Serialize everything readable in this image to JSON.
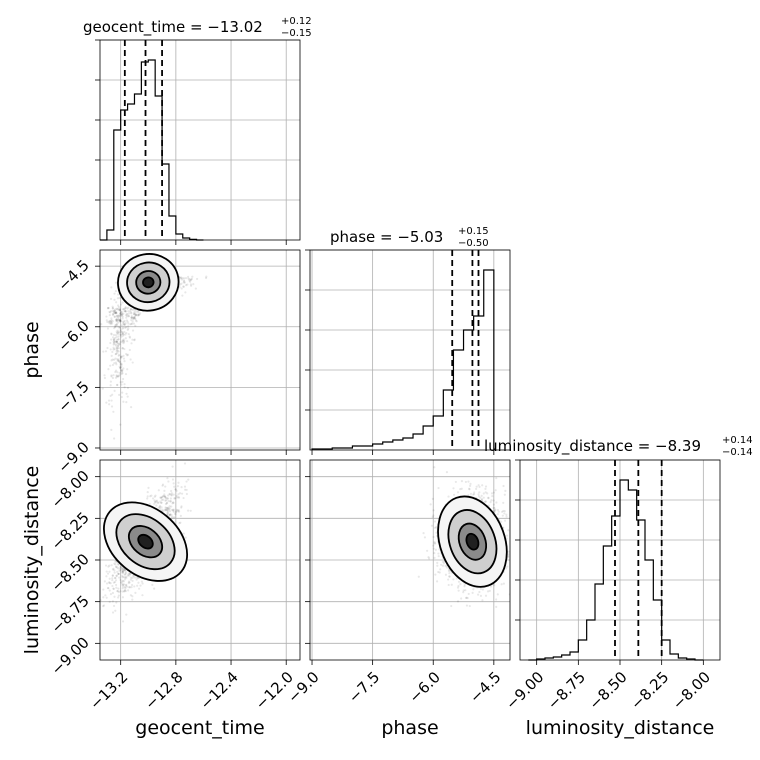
{
  "chart_data": {
    "type": "corner",
    "parameters": [
      "geocent_time",
      "phase",
      "luminosity_distance"
    ],
    "axis_labels": {
      "x": [
        "geocent_time",
        "phase",
        "luminosity_distance"
      ],
      "y": [
        "phase",
        "luminosity_distance"
      ]
    },
    "ranges": {
      "geocent_time": [
        -13.35,
        -11.9
      ],
      "phase": [
        -9.05,
        -4.1
      ],
      "luminosity_distance": [
        -9.1,
        -7.9
      ]
    },
    "ticks": {
      "geocent_time": {
        "values": [
          -13.2,
          -12.8,
          -12.4,
          -12.0
        ],
        "labels": [
          "−13.2",
          "−12.8",
          "−12.4",
          "−12.0"
        ]
      },
      "phase": {
        "values": [
          -9.0,
          -7.5,
          -6.0,
          -4.5
        ],
        "labels": [
          "−9.0",
          "−7.5",
          "−6.0",
          "−4.5"
        ]
      },
      "luminosity_distance": {
        "values": [
          -9.0,
          -8.75,
          -8.5,
          -8.25,
          -8.0
        ],
        "labels": [
          "−9.00",
          "−8.75",
          "−8.50",
          "−8.25",
          "−8.00"
        ]
      }
    },
    "titles": [
      {
        "param": "geocent_time",
        "main": "geocent_time = −13.02",
        "sup": "+0.12",
        "sub": "−0.15"
      },
      {
        "param": "phase",
        "main": "phase = −5.03",
        "sup": "+0.15",
        "sub": "−0.50"
      },
      {
        "param": "luminosity_distance",
        "main": "luminosity_distance = −8.39",
        "sup": "+0.14",
        "sub": "−0.14"
      }
    ],
    "marginals": {
      "geocent_time": {
        "edges": [
          -13.35,
          -13.3,
          -13.25,
          -13.2,
          -13.15,
          -13.1,
          -13.05,
          -13.0,
          -12.95,
          -12.9,
          -12.85,
          -12.8,
          -12.75,
          -12.7,
          -12.65,
          -12.6
        ],
        "counts": [
          0,
          5,
          55,
          65,
          68,
          73,
          89,
          90,
          72,
          38,
          12,
          3,
          1,
          0.3,
          0,
          0
        ],
        "quantiles": [
          -13.17,
          -13.02,
          -12.9
        ]
      },
      "phase": {
        "edges": [
          -9.0,
          -8.5,
          -8.0,
          -7.5,
          -7.25,
          -7.0,
          -6.75,
          -6.5,
          -6.25,
          -6.0,
          -5.75,
          -5.5,
          -5.25,
          -5.0,
          -4.75,
          -4.5
        ],
        "counts": [
          0.5,
          1,
          2,
          3,
          4,
          5,
          6,
          8,
          12,
          17,
          30,
          50,
          60,
          67,
          90,
          0
        ],
        "quantiles": [
          -5.53,
          -5.03,
          -4.88
        ]
      },
      "luminosity_distance": {
        "edges": [
          -9.05,
          -9.0,
          -8.95,
          -8.9,
          -8.85,
          -8.8,
          -8.75,
          -8.7,
          -8.65,
          -8.6,
          -8.55,
          -8.5,
          -8.45,
          -8.4,
          -8.35,
          -8.3,
          -8.25,
          -8.2,
          -8.15,
          -8.1,
          -8.05,
          -8.0
        ],
        "counts": [
          0,
          0.5,
          1,
          1.5,
          2.5,
          4,
          10,
          20,
          38,
          57,
          72,
          90,
          85,
          70,
          50,
          30,
          10,
          3,
          1,
          0.5,
          0
        ],
        "quantiles": [
          -8.53,
          -8.39,
          -8.25
        ]
      }
    },
    "joint": [
      {
        "x": "geocent_time",
        "y": "phase",
        "center": [
          -13.0,
          -4.9
        ],
        "spread": [
          0.11,
          0.35
        ]
      },
      {
        "x": "geocent_time",
        "y": "luminosity_distance",
        "center": [
          -13.02,
          -8.39
        ],
        "spread": [
          0.12,
          0.14
        ]
      },
      {
        "x": "phase",
        "y": "luminosity_distance",
        "center": [
          -5.03,
          -8.39
        ],
        "spread": [
          0.4,
          0.14
        ]
      }
    ],
    "grid": true
  }
}
